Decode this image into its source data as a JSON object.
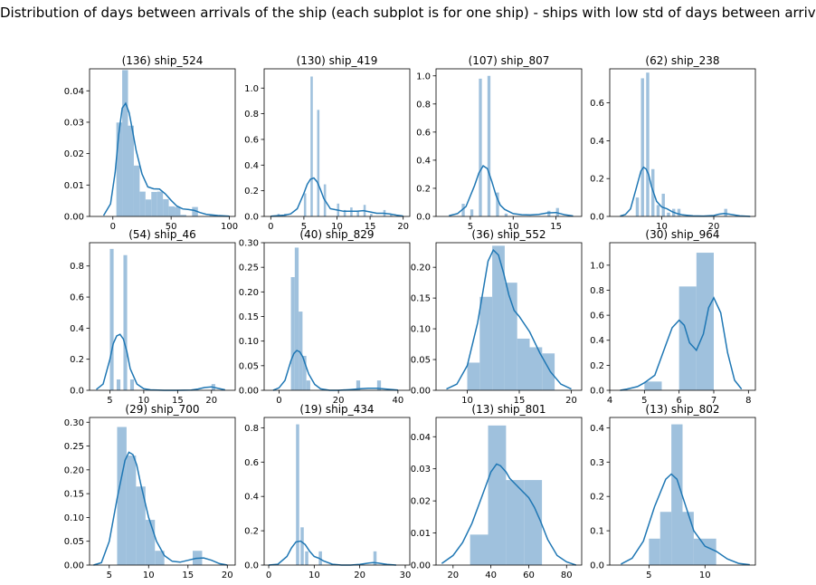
{
  "figure": {
    "suptitle": "Distribution of days between arrivals of the ship (each subplot is for one ship) - ships with low std of days between arrivals"
  },
  "colors": {
    "bar_fill": "#9fc1dd",
    "kde_line": "#1f77b4",
    "axes": "#000000"
  },
  "chart_data": [
    {
      "type": "bar",
      "title": "(136) ship_524",
      "xlim": [
        -20,
        105
      ],
      "ylim": [
        0,
        0.047
      ],
      "xticks": [
        0,
        50,
        100
      ],
      "yticks": [
        0.0,
        0.01,
        0.02,
        0.03,
        0.04
      ],
      "ytick_labels": [
        "0.00",
        "0.01",
        "0.02",
        "0.03",
        "0.04"
      ],
      "bins": [
        [
          3,
          8,
          0.0299
        ],
        [
          8,
          13,
          0.0466
        ],
        [
          13,
          18,
          0.0289
        ],
        [
          18,
          23,
          0.0162
        ],
        [
          23,
          28,
          0.0079
        ],
        [
          28,
          33,
          0.0054
        ],
        [
          33,
          38,
          0.0078
        ],
        [
          38,
          43,
          0.0079
        ],
        [
          43,
          48,
          0.0055
        ],
        [
          48,
          53,
          0.0032
        ],
        [
          53,
          58,
          0.003
        ],
        [
          58,
          63,
          0.0005
        ],
        [
          68,
          73,
          0.003
        ],
        [
          83,
          88,
          0.0005
        ]
      ],
      "kde": {
        "x": [
          -8,
          -2,
          2,
          5,
          8,
          11,
          14,
          17,
          20,
          25,
          30,
          35,
          40,
          45,
          50,
          55,
          60,
          65,
          70,
          75,
          80,
          90,
          100
        ],
        "y": [
          0.0003,
          0.004,
          0.014,
          0.026,
          0.0345,
          0.036,
          0.033,
          0.027,
          0.021,
          0.0135,
          0.0094,
          0.0088,
          0.0087,
          0.0072,
          0.0051,
          0.0033,
          0.0024,
          0.0022,
          0.0019,
          0.0012,
          0.0007,
          0.0003,
          0.0001
        ]
      }
    },
    {
      "type": "bar",
      "title": "(130) ship_419",
      "xlim": [
        -1,
        21
      ],
      "ylim": [
        0,
        1.15
      ],
      "xticks": [
        0,
        5,
        10,
        15,
        20
      ],
      "yticks": [
        0.0,
        0.2,
        0.4,
        0.6,
        0.8,
        1.0
      ],
      "ytick_labels": [
        "0.0",
        "0.2",
        "0.4",
        "0.6",
        "0.8",
        "1.0"
      ],
      "bins": [
        [
          1.0,
          1.35,
          0.02
        ],
        [
          2.0,
          2.35,
          0.02
        ],
        [
          5.0,
          5.35,
          0.18
        ],
        [
          6.0,
          6.35,
          1.09
        ],
        [
          7.0,
          7.35,
          0.83
        ],
        [
          8.0,
          8.35,
          0.25
        ],
        [
          10.0,
          10.35,
          0.1
        ],
        [
          11.0,
          11.35,
          0.05
        ],
        [
          12.0,
          12.35,
          0.07
        ],
        [
          13.0,
          13.35,
          0.04
        ],
        [
          14.0,
          14.35,
          0.09
        ],
        [
          15.0,
          15.35,
          0.02
        ],
        [
          17.0,
          17.35,
          0.05
        ],
        [
          18.0,
          18.35,
          0.02
        ]
      ],
      "kde": {
        "x": [
          0,
          2,
          3,
          4,
          5,
          5.5,
          6,
          6.5,
          7,
          7.5,
          8,
          9,
          10,
          11,
          12,
          13,
          14,
          15,
          16,
          17,
          18,
          19,
          20
        ],
        "y": [
          0.002,
          0.01,
          0.02,
          0.06,
          0.18,
          0.25,
          0.29,
          0.3,
          0.27,
          0.21,
          0.14,
          0.06,
          0.05,
          0.04,
          0.04,
          0.04,
          0.045,
          0.035,
          0.025,
          0.025,
          0.02,
          0.01,
          0.003
        ]
      }
    },
    {
      "type": "bar",
      "title": "(107) ship_807",
      "xlim": [
        1,
        18
      ],
      "ylim": [
        0,
        1.05
      ],
      "xticks": [
        5,
        10,
        15
      ],
      "yticks": [
        0.0,
        0.2,
        0.4,
        0.6,
        0.8,
        1.0
      ],
      "ytick_labels": [
        "0.0",
        "0.2",
        "0.4",
        "0.6",
        "0.8",
        "1.0"
      ],
      "bins": [
        [
          4.0,
          4.35,
          0.09
        ],
        [
          5.0,
          5.35,
          0.05
        ],
        [
          6.0,
          6.35,
          0.98
        ],
        [
          7.0,
          7.35,
          1.0
        ],
        [
          8.0,
          8.35,
          0.17
        ],
        [
          9.0,
          9.35,
          0.02
        ],
        [
          14.0,
          14.35,
          0.04
        ],
        [
          15.0,
          15.35,
          0.06
        ]
      ],
      "kde": {
        "x": [
          2.5,
          3.5,
          4.5,
          5.5,
          6,
          6.5,
          7,
          7.5,
          8,
          8.5,
          9,
          10,
          11,
          12,
          13,
          14,
          15,
          16,
          17
        ],
        "y": [
          0.005,
          0.02,
          0.07,
          0.22,
          0.31,
          0.36,
          0.34,
          0.25,
          0.15,
          0.08,
          0.05,
          0.02,
          0.012,
          0.01,
          0.015,
          0.025,
          0.028,
          0.012,
          0.003
        ]
      }
    },
    {
      "type": "bar",
      "title": "(62) ship_238",
      "xlim": [
        0,
        28
      ],
      "ylim": [
        0,
        0.78
      ],
      "xticks": [
        10,
        20
      ],
      "yticks": [
        0.0,
        0.2,
        0.4,
        0.6
      ],
      "ytick_labels": [
        "0.0",
        "0.2",
        "0.4",
        "0.6"
      ],
      "bins": [
        [
          5.0,
          5.6,
          0.1
        ],
        [
          6.0,
          6.6,
          0.73
        ],
        [
          7.0,
          7.6,
          0.76
        ],
        [
          8.0,
          8.6,
          0.25
        ],
        [
          9.0,
          9.6,
          0.06
        ],
        [
          10.0,
          10.6,
          0.12
        ],
        [
          11.0,
          11.6,
          0.02
        ],
        [
          12.0,
          12.6,
          0.04
        ],
        [
          13.0,
          13.6,
          0.04
        ],
        [
          22.0,
          22.6,
          0.04
        ]
      ],
      "kde": {
        "x": [
          2,
          3,
          4,
          5,
          6,
          6.5,
          7,
          7.5,
          8,
          9,
          10,
          11,
          12,
          13,
          14,
          16,
          18,
          20,
          21,
          22,
          23,
          25,
          27
        ],
        "y": [
          0.002,
          0.01,
          0.04,
          0.14,
          0.24,
          0.26,
          0.25,
          0.22,
          0.16,
          0.08,
          0.05,
          0.04,
          0.025,
          0.015,
          0.008,
          0.003,
          0.002,
          0.005,
          0.012,
          0.016,
          0.012,
          0.003,
          0.0
        ]
      }
    },
    {
      "type": "bar",
      "title": "(54) ship_46",
      "xlim": [
        2,
        23.5
      ],
      "ylim": [
        0,
        0.95
      ],
      "xticks": [
        5,
        10,
        15,
        20
      ],
      "yticks": [
        0.0,
        0.2,
        0.4,
        0.6,
        0.8
      ],
      "ytick_labels": [
        "0.0",
        "0.2",
        "0.4",
        "0.6",
        "0.8"
      ],
      "bins": [
        [
          5.0,
          5.55,
          0.91
        ],
        [
          6.0,
          6.55,
          0.07
        ],
        [
          7.0,
          7.55,
          0.87
        ],
        [
          8.0,
          8.55,
          0.07
        ],
        [
          20.0,
          20.55,
          0.04
        ]
      ],
      "kde": {
        "x": [
          3,
          4,
          5,
          5.5,
          6,
          6.5,
          7,
          7.5,
          8,
          9,
          10,
          11,
          13,
          15,
          17,
          18,
          19,
          20,
          21,
          22
        ],
        "y": [
          0.005,
          0.04,
          0.2,
          0.3,
          0.35,
          0.36,
          0.33,
          0.25,
          0.14,
          0.04,
          0.01,
          0.003,
          0.0,
          0.0,
          0.002,
          0.008,
          0.018,
          0.022,
          0.012,
          0.003
        ]
      }
    },
    {
      "type": "bar",
      "title": "(40) ship_829",
      "xlim": [
        -5,
        44
      ],
      "ylim": [
        0,
        0.3
      ],
      "xticks": [
        0,
        20,
        40
      ],
      "yticks": [
        0.0,
        0.05,
        0.1,
        0.15,
        0.2,
        0.25,
        0.3
      ],
      "ytick_labels": [
        "0.00",
        "0.05",
        "0.10",
        "0.15",
        "0.20",
        "0.25",
        "0.30"
      ],
      "bins": [
        [
          4.0,
          5.3,
          0.23
        ],
        [
          5.3,
          6.6,
          0.29
        ],
        [
          6.6,
          7.9,
          0.16
        ],
        [
          7.9,
          9.2,
          0.07
        ],
        [
          9.2,
          10.5,
          0.02
        ],
        [
          26.0,
          27.3,
          0.02
        ],
        [
          33.0,
          34.3,
          0.02
        ]
      ],
      "kde": {
        "x": [
          -2,
          0,
          2,
          4,
          5,
          6,
          7,
          8,
          9,
          10,
          12,
          14,
          17,
          20,
          24,
          27,
          30,
          33,
          36,
          40
        ],
        "y": [
          0.0,
          0.005,
          0.02,
          0.06,
          0.075,
          0.081,
          0.078,
          0.068,
          0.05,
          0.033,
          0.012,
          0.003,
          0.0,
          0.0,
          0.0015,
          0.003,
          0.004,
          0.004,
          0.0025,
          0.0005
        ]
      }
    },
    {
      "type": "bar",
      "title": "(36) ship_552",
      "xlim": [
        7,
        21
      ],
      "ylim": [
        0,
        0.24
      ],
      "xticks": [
        10,
        15,
        20
      ],
      "yticks": [
        0.0,
        0.05,
        0.1,
        0.15,
        0.2
      ],
      "ytick_labels": [
        "0.00",
        "0.05",
        "0.10",
        "0.15",
        "0.20"
      ],
      "bins": [
        [
          10.0,
          11.2,
          0.045
        ],
        [
          11.2,
          12.4,
          0.152
        ],
        [
          12.4,
          13.6,
          0.235
        ],
        [
          13.6,
          14.8,
          0.175
        ],
        [
          14.8,
          16.0,
          0.084
        ],
        [
          16.0,
          17.2,
          0.07
        ],
        [
          17.2,
          18.4,
          0.06
        ]
      ],
      "kde": {
        "x": [
          8,
          9,
          10,
          11,
          11.5,
          12,
          12.5,
          13,
          13.5,
          14,
          14.5,
          15,
          16,
          17,
          18,
          19,
          20
        ],
        "y": [
          0.002,
          0.01,
          0.04,
          0.11,
          0.16,
          0.21,
          0.228,
          0.22,
          0.19,
          0.155,
          0.13,
          0.12,
          0.095,
          0.06,
          0.03,
          0.01,
          0.002
        ]
      }
    },
    {
      "type": "bar",
      "title": "(30) ship_964",
      "xlim": [
        4,
        8.2
      ],
      "ylim": [
        0,
        1.18
      ],
      "xticks": [
        4,
        5,
        6,
        7,
        8
      ],
      "yticks": [
        0.0,
        0.2,
        0.4,
        0.6,
        0.8,
        1.0
      ],
      "ytick_labels": [
        "0.0",
        "0.2",
        "0.4",
        "0.6",
        "0.8",
        "1.0"
      ],
      "bins": [
        [
          5.0,
          5.5,
          0.07
        ],
        [
          6.0,
          6.5,
          0.83
        ],
        [
          6.5,
          7.0,
          1.1
        ]
      ],
      "kde": {
        "x": [
          4.3,
          4.5,
          4.8,
          5.0,
          5.3,
          5.6,
          5.8,
          6.0,
          6.15,
          6.3,
          6.5,
          6.7,
          6.85,
          7.0,
          7.2,
          7.4,
          7.6,
          7.8
        ],
        "y": [
          0.0,
          0.01,
          0.03,
          0.06,
          0.12,
          0.35,
          0.5,
          0.56,
          0.52,
          0.38,
          0.32,
          0.45,
          0.66,
          0.74,
          0.62,
          0.3,
          0.08,
          0.01
        ]
      }
    },
    {
      "type": "bar",
      "title": "(29) ship_700",
      "xlim": [
        2.5,
        21
      ],
      "ylim": [
        0,
        0.31
      ],
      "xticks": [
        5,
        10,
        15,
        20
      ],
      "yticks": [
        0.0,
        0.05,
        0.1,
        0.15,
        0.2,
        0.25,
        0.3
      ],
      "ytick_labels": [
        "0.00",
        "0.05",
        "0.10",
        "0.15",
        "0.20",
        "0.25",
        "0.30"
      ],
      "bins": [
        [
          6.0,
          7.2,
          0.29
        ],
        [
          7.2,
          8.4,
          0.23
        ],
        [
          8.4,
          9.6,
          0.165
        ],
        [
          9.6,
          10.8,
          0.095
        ],
        [
          10.8,
          12.0,
          0.03
        ],
        [
          15.6,
          16.8,
          0.03
        ]
      ],
      "kde": {
        "x": [
          3,
          4,
          5,
          6,
          7,
          7.5,
          8,
          8.5,
          9,
          10,
          11,
          12,
          13,
          14,
          15,
          16,
          17,
          18,
          19,
          20
        ],
        "y": [
          0.0,
          0.005,
          0.05,
          0.14,
          0.22,
          0.237,
          0.232,
          0.21,
          0.17,
          0.1,
          0.05,
          0.02,
          0.008,
          0.006,
          0.01,
          0.014,
          0.015,
          0.01,
          0.003,
          0.0
        ]
      }
    },
    {
      "type": "bar",
      "title": "(19) ship_434",
      "xlim": [
        -1,
        31
      ],
      "ylim": [
        0,
        0.86
      ],
      "xticks": [
        0,
        10,
        20,
        30
      ],
      "yticks": [
        0.0,
        0.2,
        0.4,
        0.6,
        0.8
      ],
      "ytick_labels": [
        "0.0",
        "0.2",
        "0.4",
        "0.6",
        "0.8"
      ],
      "bins": [
        [
          6.0,
          6.7,
          0.82
        ],
        [
          7.0,
          7.7,
          0.22
        ],
        [
          8.0,
          8.7,
          0.08
        ],
        [
          11.0,
          11.7,
          0.08
        ],
        [
          23.0,
          23.7,
          0.08
        ]
      ],
      "kde": {
        "x": [
          0,
          2,
          4,
          5,
          6,
          7,
          8,
          9,
          10,
          11,
          12,
          14,
          16,
          18,
          20,
          22,
          23,
          24,
          26,
          28
        ],
        "y": [
          0.0,
          0.005,
          0.05,
          0.1,
          0.135,
          0.14,
          0.12,
          0.08,
          0.05,
          0.04,
          0.025,
          0.005,
          0.0,
          0.0,
          0.004,
          0.012,
          0.014,
          0.012,
          0.004,
          0.0
        ]
      }
    },
    {
      "type": "bar",
      "title": "(13) ship_801",
      "xlim": [
        11,
        88
      ],
      "ylim": [
        0,
        0.046
      ],
      "xticks": [
        20,
        40,
        60,
        80
      ],
      "yticks": [
        0.0,
        0.01,
        0.02,
        0.03,
        0.04
      ],
      "ytick_labels": [
        "0.00",
        "0.01",
        "0.02",
        "0.03",
        "0.04"
      ],
      "bins": [
        [
          29,
          38.5,
          0.0095
        ],
        [
          38.5,
          48,
          0.0435
        ],
        [
          48,
          57.5,
          0.0265
        ],
        [
          57.5,
          67,
          0.0265
        ]
      ],
      "kde": {
        "x": [
          14,
          20,
          25,
          30,
          35,
          40,
          43,
          45,
          48,
          50,
          55,
          60,
          63,
          66,
          70,
          75,
          80,
          85
        ],
        "y": [
          0.0005,
          0.003,
          0.007,
          0.013,
          0.021,
          0.029,
          0.0315,
          0.031,
          0.029,
          0.027,
          0.024,
          0.021,
          0.018,
          0.014,
          0.008,
          0.003,
          0.001,
          0.0
        ]
      }
    },
    {
      "type": "bar",
      "title": "(13) ship_802",
      "xlim": [
        1.5,
        14.5
      ],
      "ylim": [
        0,
        0.43
      ],
      "xticks": [
        5,
        10
      ],
      "yticks": [
        0.0,
        0.1,
        0.2,
        0.3,
        0.4
      ],
      "ytick_labels": [
        "0.0",
        "0.1",
        "0.2",
        "0.3",
        "0.4"
      ],
      "bins": [
        [
          5.0,
          6.0,
          0.077
        ],
        [
          6.0,
          7.0,
          0.155
        ],
        [
          7.0,
          8.0,
          0.41
        ],
        [
          8.0,
          9.0,
          0.155
        ],
        [
          9.0,
          11.0,
          0.077
        ]
      ],
      "kde": {
        "x": [
          2.5,
          3.5,
          4.5,
          5.5,
          6.5,
          7,
          7.5,
          8,
          8.5,
          9,
          10,
          11,
          12,
          13,
          14
        ],
        "y": [
          0.003,
          0.02,
          0.07,
          0.17,
          0.25,
          0.265,
          0.25,
          0.2,
          0.15,
          0.1,
          0.055,
          0.04,
          0.018,
          0.005,
          0.001
        ]
      }
    }
  ]
}
